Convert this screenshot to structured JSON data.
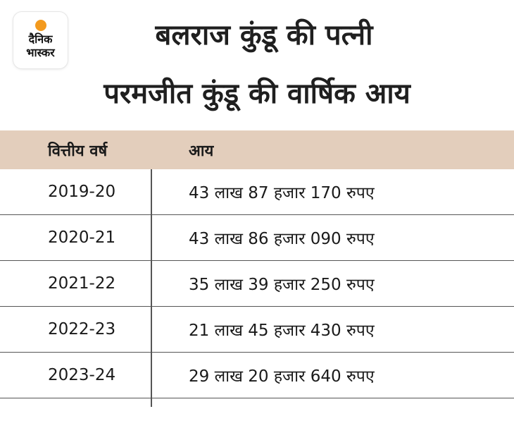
{
  "logo": {
    "line1": "दैनिक",
    "line2": "भास्कर",
    "sun_color": "#f39a1e"
  },
  "title": {
    "line1": "बलराज कुंडू की पत्नी",
    "line2": "परमजीत कुंडू की वार्षिक आय"
  },
  "table": {
    "header_bg": "#e3cebc",
    "columns": [
      "वित्तीय वर्ष",
      "आय"
    ],
    "rows": [
      {
        "year": "2019-20",
        "income": "43 लाख 87 हजार 170 रुपए"
      },
      {
        "year": "2020-21",
        "income": "43 लाख 86 हजार 090 रुपए"
      },
      {
        "year": "2021-22",
        "income": "35 लाख 39 हजार 250 रुपए"
      },
      {
        "year": "2022-23",
        "income": "21 लाख 45 हजार 430 रुपए"
      },
      {
        "year": "2023-24",
        "income": "29 लाख 20 हजार 640 रुपए"
      }
    ]
  }
}
